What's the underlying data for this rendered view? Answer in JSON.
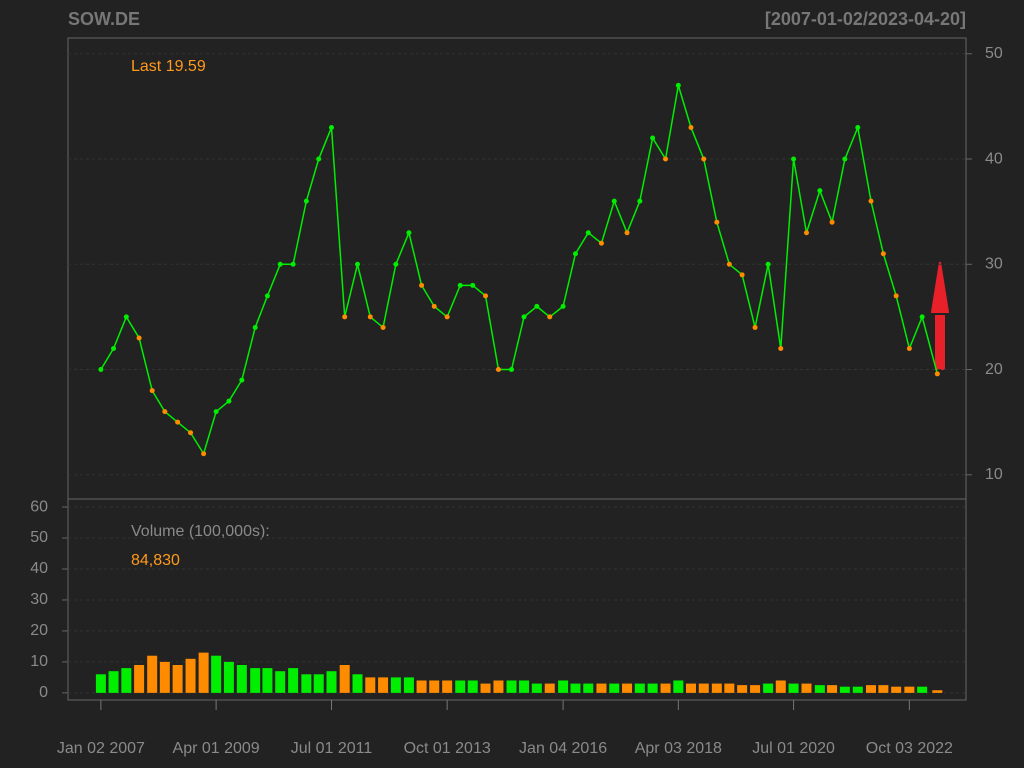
{
  "header": {
    "title": "SOW.DE",
    "date_range": "[2007-01-02/2023-04-20]"
  },
  "chart_data": [
    {
      "type": "line",
      "annotation": "Last 19.59",
      "up_color": "#00ee00",
      "down_color": "#ff8c00",
      "grid": true,
      "x": [
        "2007-01-02",
        "2007-04-02",
        "2007-07-02",
        "2007-10-01",
        "2008-01-02",
        "2008-04-01",
        "2008-07-01",
        "2008-10-01",
        "2009-01-02",
        "2009-04-01",
        "2009-07-01",
        "2009-10-01",
        "2010-01-04",
        "2010-04-01",
        "2010-07-01",
        "2010-10-01",
        "2011-01-03",
        "2011-04-01",
        "2011-07-01",
        "2011-10-03",
        "2012-01-02",
        "2012-04-02",
        "2012-07-02",
        "2012-10-01",
        "2013-01-02",
        "2013-04-02",
        "2013-07-01",
        "2013-10-01",
        "2014-01-02",
        "2014-04-01",
        "2014-07-01",
        "2014-10-01",
        "2015-01-02",
        "2015-04-01",
        "2015-07-01",
        "2015-10-01",
        "2016-01-04",
        "2016-04-01",
        "2016-07-01",
        "2016-10-03",
        "2017-01-02",
        "2017-04-03",
        "2017-07-03",
        "2017-10-02",
        "2018-01-02",
        "2018-04-03",
        "2018-07-02",
        "2018-10-01",
        "2019-01-02",
        "2019-04-01",
        "2019-07-01",
        "2019-10-01",
        "2020-01-02",
        "2020-04-01",
        "2020-07-01",
        "2020-10-01",
        "2021-01-04",
        "2021-04-01",
        "2021-07-01",
        "2021-10-01",
        "2022-01-03",
        "2022-04-01",
        "2022-07-01",
        "2022-10-03",
        "2023-01-02",
        "2023-04-20"
      ],
      "values": [
        20,
        22,
        25,
        23,
        18,
        16,
        15,
        14,
        12,
        16,
        17,
        19,
        24,
        27,
        30,
        30,
        36,
        40,
        43,
        25,
        30,
        25,
        24,
        30,
        33,
        28,
        26,
        25,
        28,
        28,
        27,
        20,
        20,
        25,
        26,
        25,
        26,
        31,
        33,
        32,
        36,
        33,
        36,
        42,
        40,
        47,
        43,
        40,
        34,
        30,
        29,
        24,
        30,
        22,
        40,
        33,
        37,
        34,
        40,
        43,
        36,
        31,
        27,
        22,
        25,
        19.59
      ],
      "xlim": [
        "2006-05-13",
        "2023-11-10"
      ],
      "xticks": [
        {
          "value": "2007-01-02",
          "label": "Jan 02 2007"
        },
        {
          "value": "2009-04-01",
          "label": "Apr 01 2009"
        },
        {
          "value": "2011-07-01",
          "label": "Jul 01 2011"
        },
        {
          "value": "2013-10-01",
          "label": "Oct 01 2013"
        },
        {
          "value": "2016-01-04",
          "label": "Jan 04 2016"
        },
        {
          "value": "2018-04-03",
          "label": "Apr 03 2018"
        },
        {
          "value": "2020-07-01",
          "label": "Jul 01 2020"
        },
        {
          "value": "2022-10-03",
          "label": "Oct 03 2022"
        }
      ],
      "ylim": [
        7.7,
        51.5
      ],
      "yticks": [
        10,
        20,
        30,
        40,
        50
      ]
    },
    {
      "type": "bar",
      "label": "Volume (100,000s):",
      "annotation": "84,830",
      "grid": true,
      "values": [
        6,
        7,
        8,
        9,
        12,
        10,
        9,
        11,
        13,
        12,
        10,
        9,
        8,
        8,
        7,
        8,
        6,
        6,
        7,
        9,
        6,
        5,
        5,
        5,
        5,
        4,
        4,
        4,
        4,
        4,
        3,
        4,
        4,
        4,
        3,
        3,
        4,
        3,
        3,
        3,
        3,
        3,
        3,
        3,
        3,
        4,
        3,
        3,
        3,
        3,
        2.5,
        2.5,
        3,
        4,
        3,
        3,
        2.5,
        2.5,
        2,
        2,
        2.5,
        2.5,
        2,
        2,
        2,
        0.8483
      ],
      "ylim": [
        -2.3,
        62.6
      ],
      "yticks": [
        0,
        10,
        20,
        30,
        40,
        50,
        60
      ]
    }
  ]
}
